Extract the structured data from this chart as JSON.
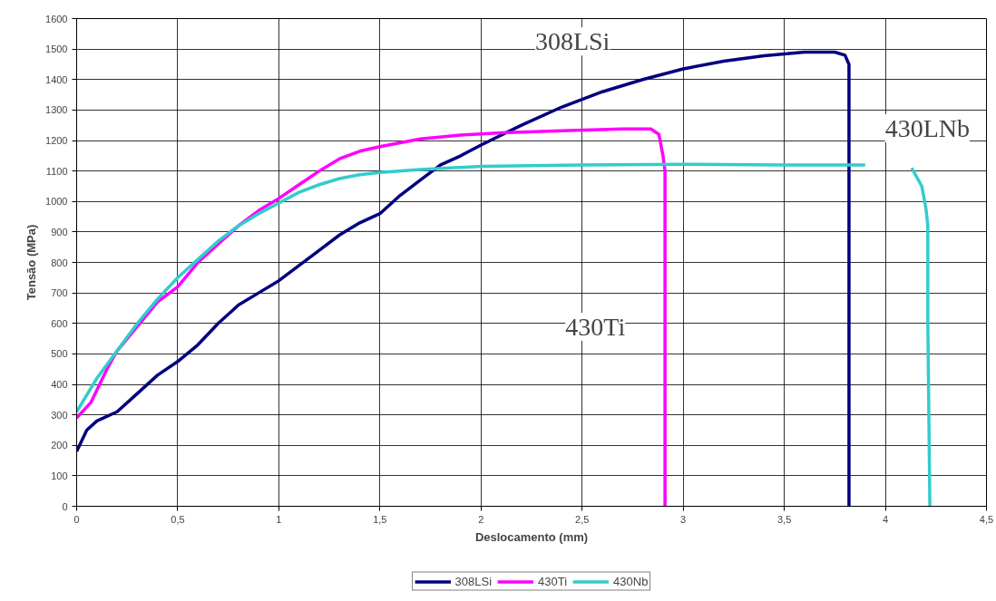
{
  "chart_data": {
    "type": "line",
    "xlabel": "Deslocamento (mm)",
    "ylabel": "Tensão (MPa)",
    "xlim": [
      0,
      4.5
    ],
    "ylim": [
      0,
      1600
    ],
    "xticks": [
      0,
      {
        "value": 0.5,
        "label": "0,5"
      },
      1,
      {
        "value": 1.5,
        "label": "1,5"
      },
      2,
      {
        "value": 2.5,
        "label": "2,5"
      },
      3,
      {
        "value": 3.5,
        "label": "3,5"
      },
      4,
      {
        "value": 4.5,
        "label": "4,5"
      }
    ],
    "yticks": [
      0,
      100,
      200,
      300,
      400,
      500,
      600,
      700,
      800,
      900,
      1000,
      1100,
      1200,
      1300,
      1400,
      1500,
      1600
    ],
    "grid": true,
    "legend": "bottom",
    "marker": "none",
    "line_style": "solid",
    "series": [
      {
        "name": "308LSi",
        "color": "#000080",
        "x": [
          0,
          0.05,
          0.1,
          0.2,
          0.3,
          0.4,
          0.5,
          0.6,
          0.7,
          0.8,
          0.9,
          1.0,
          1.1,
          1.2,
          1.3,
          1.4,
          1.5,
          1.6,
          1.7,
          1.8,
          1.9,
          2.0,
          2.2,
          2.4,
          2.6,
          2.8,
          3.0,
          3.2,
          3.4,
          3.6,
          3.75,
          3.8,
          3.82,
          3.82
        ],
        "values": [
          180,
          250,
          280,
          310,
          370,
          430,
          475,
          530,
          600,
          660,
          700,
          740,
          790,
          840,
          890,
          930,
          960,
          1020,
          1070,
          1120,
          1150,
          1185,
          1250,
          1310,
          1360,
          1400,
          1435,
          1460,
          1478,
          1490,
          1490,
          1480,
          1450,
          0
        ]
      },
      {
        "name": "430Ti",
        "color": "#ff00ff",
        "x": [
          0,
          0.07,
          0.15,
          0.2,
          0.3,
          0.4,
          0.5,
          0.6,
          0.7,
          0.8,
          0.9,
          1.0,
          1.1,
          1.2,
          1.3,
          1.4,
          1.5,
          1.7,
          1.9,
          2.1,
          2.4,
          2.7,
          2.84,
          2.88,
          2.9,
          2.91,
          2.91
        ],
        "values": [
          290,
          340,
          450,
          510,
          590,
          670,
          720,
          800,
          860,
          920,
          970,
          1010,
          1055,
          1100,
          1140,
          1165,
          1180,
          1205,
          1218,
          1225,
          1232,
          1238,
          1238,
          1220,
          1150,
          1100,
          0
        ]
      },
      {
        "name": "430Nb",
        "color": "#33cccc",
        "x": [
          0,
          0.1,
          0.2,
          0.3,
          0.4,
          0.5,
          0.6,
          0.7,
          0.8,
          0.9,
          1.0,
          1.1,
          1.2,
          1.3,
          1.4,
          1.5,
          1.7,
          2.0,
          2.5,
          3.0,
          3.5,
          3.9,
          4.0,
          4.13,
          4.18,
          4.2,
          4.21,
          4.21,
          4.22
        ],
        "values": [
          310,
          420,
          510,
          600,
          680,
          750,
          810,
          870,
          920,
          960,
          995,
          1030,
          1055,
          1075,
          1088,
          1095,
          1105,
          1115,
          1120,
          1122,
          1120,
          1120,
          null,
          1110,
          1050,
          980,
          920,
          600,
          0
        ]
      }
    ],
    "annotations": [
      "308LSi",
      "430LNb",
      "430Ti"
    ]
  }
}
